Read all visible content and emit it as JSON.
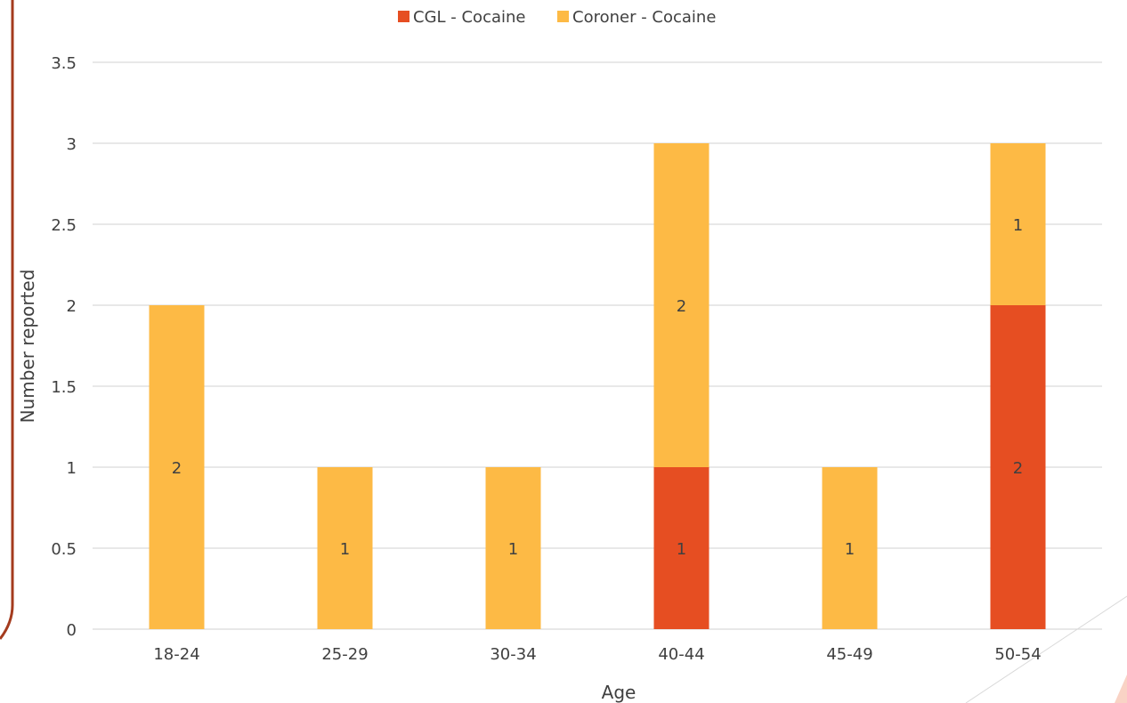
{
  "colors": {
    "cgl": "#E64E22",
    "coroner": "#FDBA45",
    "frame": "#A43B1E",
    "grid": "#D9D9D9",
    "text": "#404040",
    "label_on_light": "#404040",
    "label_on_dark": "#404040"
  },
  "chart_data": {
    "type": "bar",
    "stacked": true,
    "categories": [
      "18-24",
      "25-29",
      "30-34",
      "40-44",
      "45-49",
      "50-54"
    ],
    "series": [
      {
        "name": "CGL - Cocaine",
        "color": "#E64E22",
        "values": [
          0,
          0,
          0,
          1,
          0,
          2
        ]
      },
      {
        "name": "Coroner - Cocaine",
        "color": "#FDBA45",
        "values": [
          2,
          1,
          1,
          2,
          1,
          1
        ]
      }
    ],
    "xlabel": "Age",
    "ylabel": "Number reported",
    "ylim": [
      0,
      3.5
    ],
    "yticks": [
      "0",
      "0.5",
      "1",
      "1.5",
      "2",
      "2.5",
      "3",
      "3.5"
    ],
    "grid": true,
    "legend_position": "top"
  }
}
